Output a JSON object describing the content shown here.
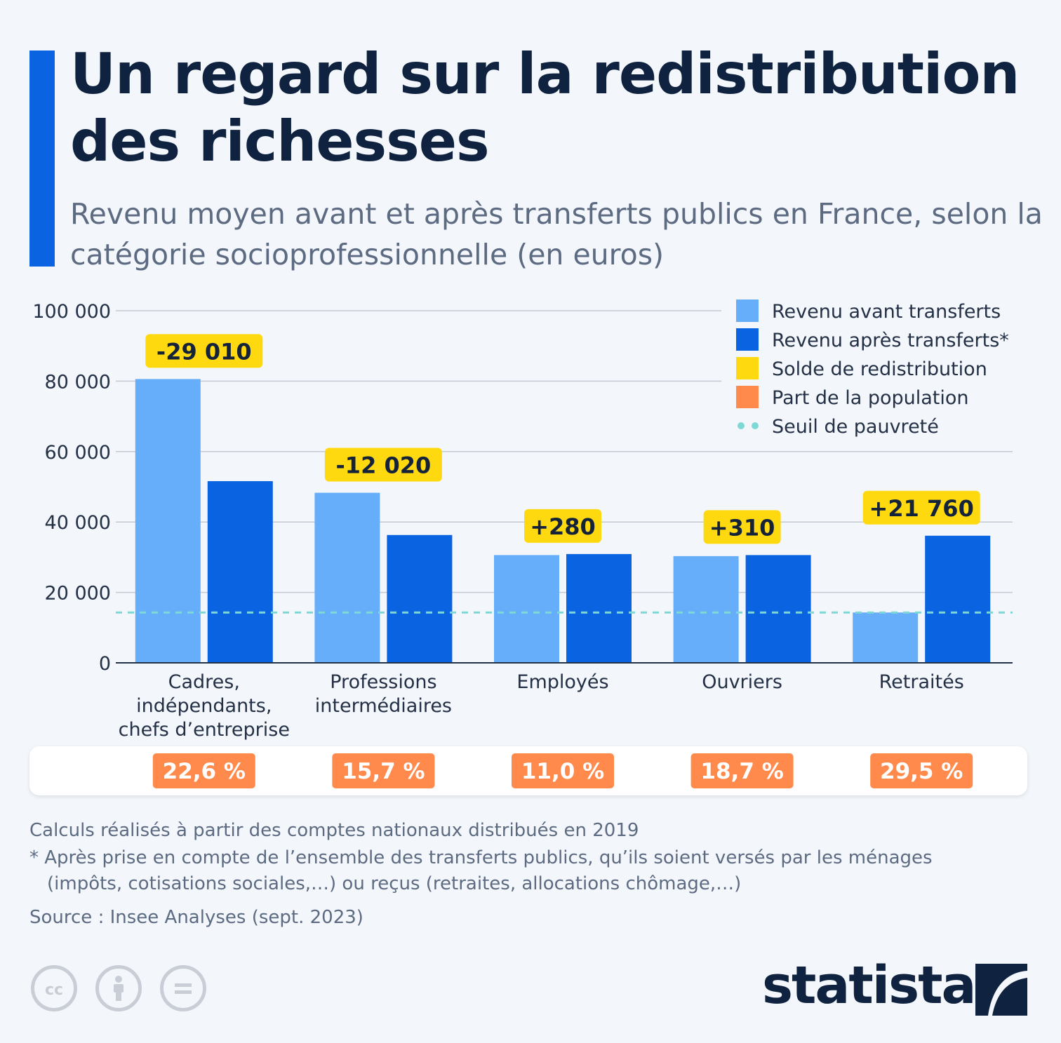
{
  "title": "Un regard sur la redistribution des richesses",
  "subtitle": "Revenu moyen avant et après transferts publics en France, selon la catégorie socioprofessionnelle (en euros)",
  "chart_data": {
    "type": "bar",
    "categories": [
      [
        "Cadres,",
        "indépendants,",
        "chefs d’entreprise"
      ],
      [
        "Professions",
        "intermédiaires"
      ],
      [
        "Employés"
      ],
      [
        "Ouvriers"
      ],
      [
        "Retraités"
      ]
    ],
    "series": [
      {
        "name": "Revenu avant transferts",
        "color": "#66aefa",
        "values": [
          80600,
          48300,
          30600,
          30300,
          14300
        ]
      },
      {
        "name": "Revenu après transferts*",
        "color": "#0a63e0",
        "values": [
          51600,
          36300,
          30900,
          30600,
          36100
        ]
      }
    ],
    "balance": {
      "name": "Solde de redistribution",
      "color": "#ffd90f",
      "labels": [
        "-29 010",
        "-12 020",
        "+280",
        "+310",
        "+21 760"
      ]
    },
    "population_share": {
      "name": "Part de la population",
      "color": "#ff8a4c",
      "labels": [
        "22,6 %",
        "15,7 %",
        "11,0 %",
        "18,7 %",
        "29,5 %"
      ]
    },
    "poverty_line": {
      "name": "Seuil de pauvreté",
      "color": "#7ed9d6",
      "value": 14300
    },
    "ylim": [
      0,
      100000
    ],
    "yticks": [
      0,
      20000,
      40000,
      60000,
      80000,
      100000
    ],
    "ytick_labels": [
      "0",
      "20 000",
      "40 000",
      "60 000",
      "80 000",
      "100 000"
    ],
    "grid": true,
    "legend": "top-right"
  },
  "notes": {
    "line1": "Calculs réalisés à partir des comptes nationaux distribués en 2019",
    "line2": "* Après prise en compte de l’ensemble des transferts publics, qu’ils soient versés par les ménages",
    "line3": "(impôts, cotisations sociales,…) ou reçus (retraites, allocations chômage,…)",
    "source": "Source : Insee Analyses (sept. 2023)"
  },
  "license_icons": [
    "cc-icon",
    "by-icon",
    "nd-icon"
  ],
  "brand": "statista"
}
